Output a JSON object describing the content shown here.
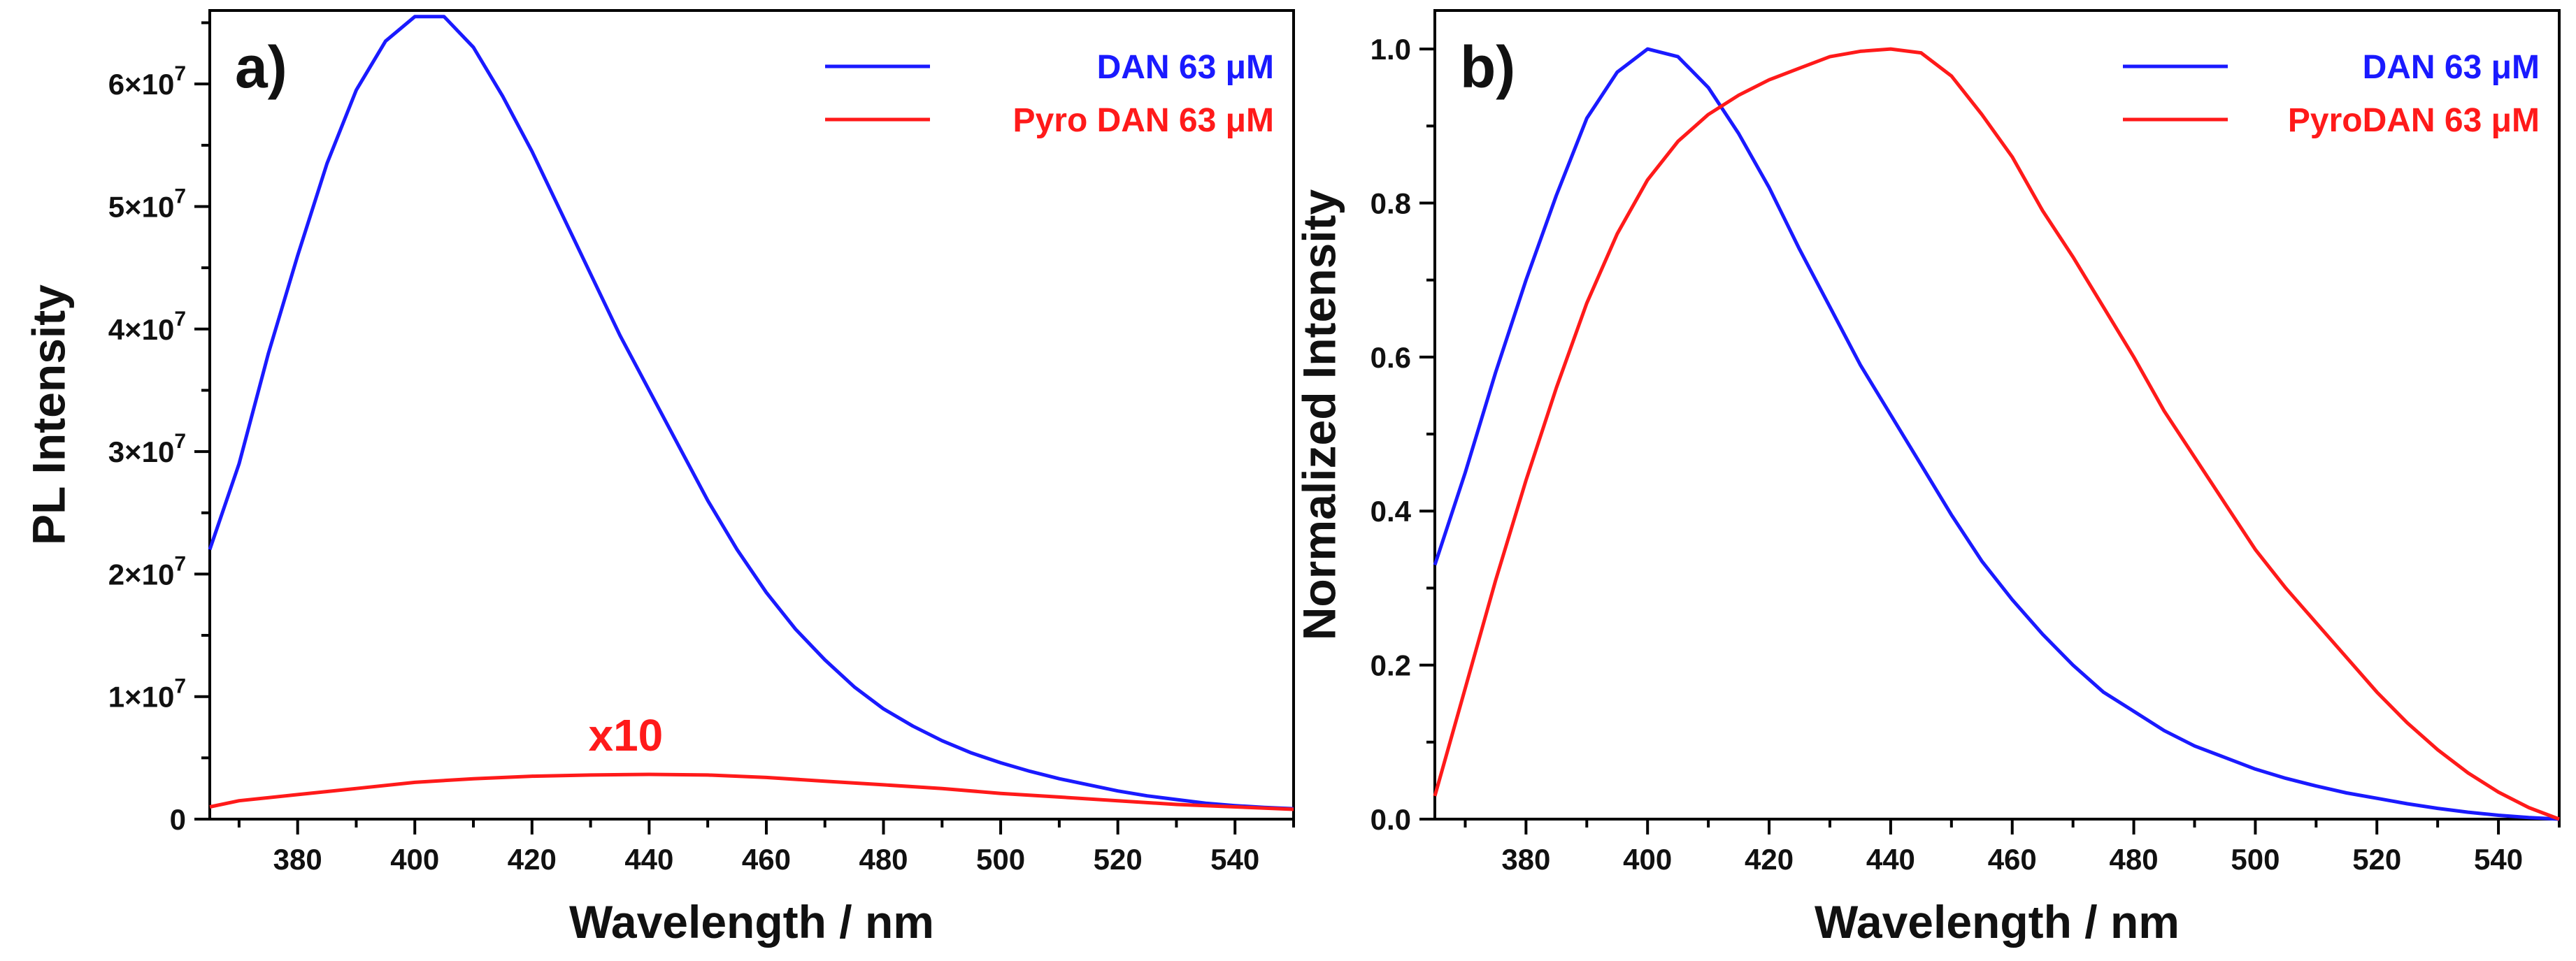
{
  "chart_data": [
    {
      "type": "line",
      "panel_label": "a)",
      "xlabel": "Wavelength / nm",
      "ylabel": "PL Intensity",
      "xlim": [
        365,
        550
      ],
      "ylim": [
        0,
        66000000
      ],
      "xticks": [
        380,
        400,
        420,
        440,
        460,
        480,
        500,
        520,
        540
      ],
      "xtick_labels": [
        "380",
        "400",
        "420",
        "440",
        "460",
        "480",
        "500",
        "520",
        "540"
      ],
      "yticks": [
        0,
        10000000,
        20000000,
        30000000,
        40000000,
        50000000,
        60000000
      ],
      "ytick_labels": [
        {
          "base": "0",
          "exp": ""
        },
        {
          "base": "1×10",
          "exp": "7"
        },
        {
          "base": "2×10",
          "exp": "7"
        },
        {
          "base": "3×10",
          "exp": "7"
        },
        {
          "base": "4×10",
          "exp": "7"
        },
        {
          "base": "5×10",
          "exp": "7"
        },
        {
          "base": "6×10",
          "exp": "7"
        }
      ],
      "legend_position": "top-right",
      "series": [
        {
          "name": "DAN 63 μM",
          "color": "#1a1aff",
          "x": [
            365,
            370,
            375,
            380,
            385,
            390,
            395,
            400,
            405,
            410,
            415,
            420,
            425,
            430,
            435,
            440,
            445,
            450,
            455,
            460,
            465,
            470,
            475,
            480,
            485,
            490,
            495,
            500,
            505,
            510,
            515,
            520,
            525,
            530,
            535,
            540,
            545,
            550
          ],
          "y": [
            22000000,
            29000000,
            38000000,
            46000000,
            53500000,
            59500000,
            63500000,
            65500000,
            65500000,
            63000000,
            59000000,
            54500000,
            49500000,
            44500000,
            39500000,
            35000000,
            30500000,
            26000000,
            22000000,
            18500000,
            15500000,
            13000000,
            10800000,
            9000000,
            7600000,
            6400000,
            5400000,
            4600000,
            3900000,
            3300000,
            2800000,
            2300000,
            1900000,
            1600000,
            1300000,
            1100000,
            950000,
            850000
          ]
        },
        {
          "name": "Pyro DAN 63 μM",
          "color": "#ff1a1a",
          "x": [
            365,
            370,
            380,
            390,
            400,
            410,
            420,
            430,
            440,
            450,
            460,
            470,
            480,
            490,
            500,
            510,
            520,
            530,
            540,
            550
          ],
          "y": [
            1000000,
            1500000,
            2000000,
            2500000,
            3000000,
            3300000,
            3500000,
            3600000,
            3650000,
            3600000,
            3400000,
            3100000,
            2800000,
            2500000,
            2100000,
            1800000,
            1500000,
            1200000,
            1000000,
            800000
          ]
        }
      ],
      "annotations": [
        {
          "text": "x10",
          "color": "#ff1a1a",
          "x": 436,
          "y": 5600000
        }
      ]
    },
    {
      "type": "line",
      "panel_label": "b)",
      "xlabel": "Wavelength / nm",
      "ylabel": "Normalized Intensity",
      "xlim": [
        365,
        550
      ],
      "ylim": [
        0,
        1.05
      ],
      "xticks": [
        380,
        400,
        420,
        440,
        460,
        480,
        500,
        520,
        540
      ],
      "xtick_labels": [
        "380",
        "400",
        "420",
        "440",
        "460",
        "480",
        "500",
        "520",
        "540"
      ],
      "yticks": [
        0,
        0.2,
        0.4,
        0.6,
        0.8,
        1.0
      ],
      "ytick_labels": [
        "0.0",
        "0.2",
        "0.4",
        "0.6",
        "0.8",
        "1.0"
      ],
      "legend_position": "top-right",
      "series": [
        {
          "name": "DAN 63 μM",
          "color": "#1a1aff",
          "x": [
            365,
            370,
            375,
            380,
            385,
            390,
            395,
            400,
            405,
            410,
            415,
            420,
            425,
            430,
            435,
            440,
            445,
            450,
            455,
            460,
            465,
            470,
            475,
            480,
            485,
            490,
            495,
            500,
            505,
            510,
            515,
            520,
            525,
            530,
            535,
            540,
            545,
            550
          ],
          "y": [
            0.33,
            0.45,
            0.58,
            0.7,
            0.81,
            0.91,
            0.97,
            1.0,
            0.99,
            0.95,
            0.89,
            0.82,
            0.74,
            0.665,
            0.59,
            0.525,
            0.46,
            0.395,
            0.335,
            0.285,
            0.24,
            0.2,
            0.165,
            0.14,
            0.115,
            0.095,
            0.08,
            0.065,
            0.053,
            0.043,
            0.034,
            0.027,
            0.02,
            0.014,
            0.009,
            0.005,
            0.002,
            0.0
          ]
        },
        {
          "name": "PyroDAN 63 μM",
          "color": "#ff1a1a",
          "x": [
            365,
            370,
            375,
            380,
            385,
            390,
            395,
            400,
            405,
            410,
            415,
            420,
            425,
            430,
            435,
            440,
            445,
            450,
            455,
            460,
            465,
            470,
            475,
            480,
            485,
            490,
            495,
            500,
            505,
            510,
            515,
            520,
            525,
            530,
            535,
            540,
            545,
            550
          ],
          "y": [
            0.03,
            0.17,
            0.31,
            0.44,
            0.56,
            0.67,
            0.76,
            0.83,
            0.88,
            0.915,
            0.94,
            0.96,
            0.975,
            0.99,
            0.997,
            1.0,
            0.995,
            0.965,
            0.915,
            0.86,
            0.79,
            0.73,
            0.665,
            0.6,
            0.53,
            0.47,
            0.41,
            0.35,
            0.3,
            0.255,
            0.21,
            0.165,
            0.125,
            0.09,
            0.06,
            0.035,
            0.015,
            0.0
          ]
        }
      ],
      "annotations": []
    }
  ]
}
